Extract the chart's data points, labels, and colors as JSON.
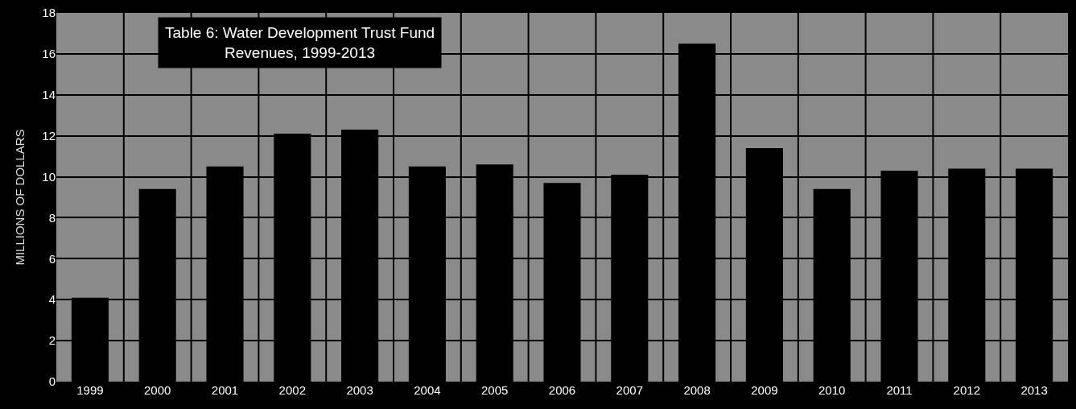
{
  "chart_data": {
    "type": "bar",
    "title": "Table 6: Water Development Trust Fund\nRevenues, 1999-2013",
    "ylabel": "MILLIONS OF DOLLARS",
    "categories": [
      "1999",
      "2000",
      "2001",
      "2002",
      "2003",
      "2004",
      "2005",
      "2006",
      "2007",
      "2008",
      "2009",
      "2010",
      "2011",
      "2012",
      "2013"
    ],
    "values": [
      4.1,
      9.4,
      10.5,
      12.1,
      12.3,
      10.5,
      10.6,
      9.7,
      10.1,
      16.5,
      11.4,
      9.4,
      10.3,
      10.4,
      10.4
    ],
    "color": "#000000",
    "ylim": [
      0,
      18
    ],
    "yticks": [
      0,
      2,
      4,
      6,
      8,
      10,
      12,
      14,
      16,
      18
    ],
    "grid": true
  }
}
